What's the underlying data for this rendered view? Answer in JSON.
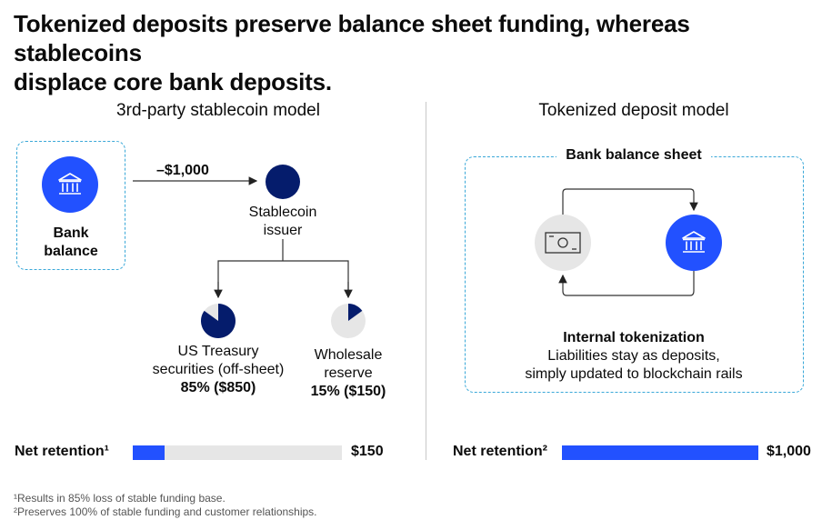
{
  "header": {
    "title_line1": "Tokenized deposits preserve balance sheet funding, whereas stablecoins",
    "title_line2": "displace core bank deposits."
  },
  "left_panel": {
    "title": "3rd-party stablecoin model",
    "bank_label_line1": "Bank",
    "bank_label_line2": "balance",
    "flow_amount": "–$1,000",
    "issuer_label_line1": "Stablecoin",
    "issuer_label_line2": "issuer",
    "treasury": {
      "label_line1": "US Treasury",
      "label_line2": "securities (off-sheet)",
      "value": "85% ($850)",
      "share": 0.85
    },
    "wholesale": {
      "label_line1": "Wholesale",
      "label_line2": "reserve",
      "value": "15% ($150)",
      "share": 0.15
    },
    "net_retention": {
      "label": "Net retention¹",
      "value": "$150",
      "fraction": 0.15
    }
  },
  "right_panel": {
    "title": "Tokenized deposit model",
    "box_label": "Bank balance sheet",
    "caption_title": "Internal tokenization",
    "caption_line1": "Liabilities stay as deposits,",
    "caption_line2": "simply updated to blockchain rails",
    "net_retention": {
      "label": "Net retention²",
      "value": "$1,000",
      "fraction": 1.0
    }
  },
  "footnotes": {
    "note1": "¹Results in 85% loss of stable funding base.",
    "note2": "²Preserves 100% of stable funding and customer relationships."
  },
  "colors": {
    "brand_blue": "#2251ff",
    "navy": "#051c6c",
    "light_gray": "#e6e6e6",
    "dashed_border": "#3aa8d8"
  },
  "icons": [
    "bank-icon",
    "cash-icon"
  ]
}
